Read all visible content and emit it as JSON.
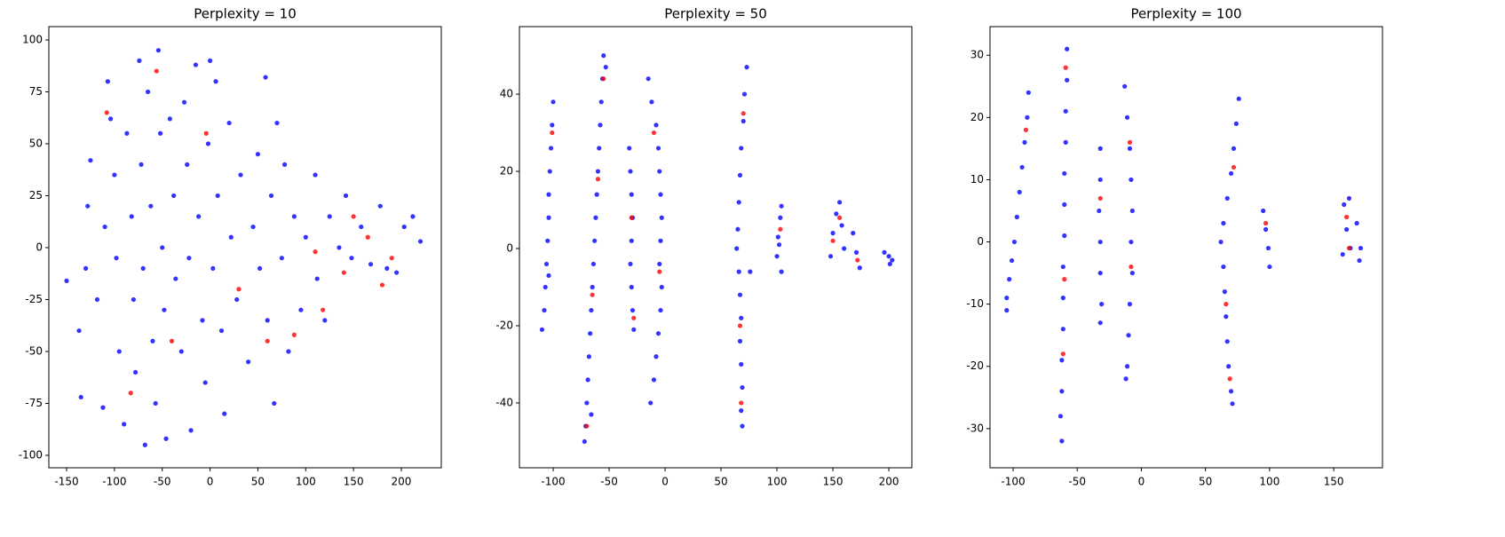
{
  "chart_data": [
    {
      "type": "scatter",
      "title": "Perplexity = 10",
      "xlim": [
        -168.6,
        241.8
      ],
      "ylim": [
        -106,
        106.4
      ],
      "xticks": [
        -150,
        -100,
        -50,
        0,
        50,
        100,
        150,
        200
      ],
      "yticks": [
        -100,
        -75,
        -50,
        -25,
        0,
        25,
        50,
        75,
        100
      ],
      "series": [
        {
          "color": "#0000ff",
          "x": [
            -150,
            -135,
            -137,
            -130,
            -128,
            -125,
            -118,
            -112,
            -110,
            -107,
            -104,
            -100,
            -98,
            -95,
            -90,
            -87,
            -82,
            -80,
            -78,
            -74,
            -72,
            -70,
            -68,
            -65,
            -62,
            -60,
            -57,
            -54,
            -52,
            -50,
            -48,
            -46,
            -42,
            -38,
            -36,
            -30,
            -27,
            -24,
            -22,
            -20,
            -15,
            -12,
            -8,
            -5,
            -2,
            0,
            3,
            6,
            8,
            12,
            15,
            20,
            22,
            28,
            32,
            40,
            45,
            50,
            52,
            58,
            60,
            64,
            67,
            70,
            75,
            78,
            82,
            88,
            95,
            100,
            110,
            112,
            120,
            125,
            135,
            142,
            148,
            158,
            168,
            178,
            185,
            195,
            203,
            212,
            220
          ],
          "y": [
            -16,
            -72,
            -40,
            -10,
            20,
            42,
            -25,
            -77,
            10,
            80,
            62,
            35,
            -5,
            -50,
            -85,
            55,
            15,
            -25,
            -60,
            90,
            40,
            -10,
            -95,
            75,
            20,
            -45,
            -75,
            95,
            55,
            0,
            -30,
            -92,
            62,
            25,
            -15,
            -50,
            70,
            40,
            -5,
            -88,
            88,
            15,
            -35,
            -65,
            50,
            90,
            -10,
            80,
            25,
            -40,
            -80,
            60,
            5,
            -25,
            35,
            -55,
            10,
            45,
            -10,
            82,
            -35,
            25,
            -75,
            60,
            -5,
            40,
            -50,
            15,
            -30,
            5,
            35,
            -15,
            -35,
            15,
            0,
            25,
            -5,
            10,
            -8,
            20,
            -10,
            -12,
            10,
            15,
            3
          ]
        },
        {
          "color": "#ff0000",
          "x": [
            -108,
            -83,
            -56,
            -40,
            -4,
            30,
            60,
            88,
            110,
            118,
            140,
            150,
            165,
            180,
            190
          ],
          "y": [
            65,
            -70,
            85,
            -45,
            55,
            -20,
            -45,
            -42,
            -2,
            -30,
            -12,
            15,
            5,
            -18,
            -5
          ]
        }
      ]
    },
    {
      "type": "scatter",
      "title": "Perplexity = 50",
      "xlim": [
        -130.2,
        220.6
      ],
      "ylim": [
        -56.8,
        57.5
      ],
      "xticks": [
        -100,
        -50,
        0,
        50,
        100,
        150,
        200
      ],
      "yticks": [
        -40,
        -20,
        0,
        20,
        40
      ],
      "series": [
        {
          "color": "#0000ff",
          "x": [
            -100,
            -101,
            -102,
            -103,
            -104,
            -104,
            -105,
            -106,
            -107,
            -108,
            -110,
            -104,
            -55,
            -56,
            -57,
            -58,
            -59,
            -60,
            -61,
            -62,
            -63,
            -64,
            -65,
            -66,
            -67,
            -68,
            -69,
            -70,
            -71,
            -72,
            -53,
            -66,
            -32,
            -31,
            -30,
            -29,
            -30,
            -31,
            -30,
            -29,
            -28,
            -15,
            -12,
            -8,
            -6,
            -5,
            -4,
            -3,
            -4,
            -5,
            -3,
            -4,
            -6,
            -8,
            -10,
            -13,
            73,
            71,
            70,
            68,
            67,
            66,
            65,
            64,
            66,
            67,
            68,
            67,
            68,
            69,
            68,
            69,
            76,
            100,
            101,
            103,
            104,
            104,
            102,
            148,
            150,
            153,
            156,
            158,
            160,
            168,
            171,
            174,
            196,
            200,
            203,
            201
          ],
          "y": [
            38,
            32,
            26,
            20,
            14,
            8,
            2,
            -4,
            -10,
            -16,
            -21,
            -7,
            50,
            44,
            38,
            32,
            26,
            20,
            14,
            8,
            2,
            -4,
            -10,
            -16,
            -22,
            -28,
            -34,
            -40,
            -46,
            -50,
            47,
            -43,
            26,
            20,
            14,
            8,
            2,
            -4,
            -10,
            -16,
            -21,
            44,
            38,
            32,
            26,
            20,
            14,
            8,
            2,
            -4,
            -10,
            -16,
            -22,
            -28,
            -34,
            -40,
            47,
            40,
            33,
            26,
            19,
            12,
            5,
            0,
            -6,
            -12,
            -18,
            -24,
            -30,
            -36,
            -42,
            -46,
            -6,
            -2,
            3,
            8,
            11,
            -6,
            1,
            -2,
            4,
            9,
            12,
            6,
            0,
            4,
            -1,
            -5,
            -1,
            -2,
            -3,
            -4
          ]
        },
        {
          "color": "#ff0000",
          "x": [
            -101,
            -55,
            -60,
            -65,
            -30,
            -28,
            -5,
            -10,
            70,
            67,
            68,
            103,
            150,
            156,
            172,
            -70
          ],
          "y": [
            30,
            44,
            18,
            -12,
            8,
            -18,
            -6,
            30,
            35,
            -20,
            -40,
            5,
            2,
            8,
            -3,
            -46
          ]
        }
      ]
    },
    {
      "type": "scatter",
      "title": "Perplexity = 100",
      "xlim": [
        -118,
        188
      ],
      "ylim": [
        -36.3,
        34.6
      ],
      "xticks": [
        -100,
        -50,
        0,
        50,
        100,
        150
      ],
      "yticks": [
        -30,
        -20,
        -10,
        0,
        10,
        20,
        30
      ],
      "series": [
        {
          "color": "#0000ff",
          "x": [
            -88,
            -89,
            -91,
            -93,
            -95,
            -97,
            -99,
            -101,
            -103,
            -105,
            -105,
            -58,
            -58,
            -59,
            -59,
            -60,
            -60,
            -60,
            -61,
            -61,
            -61,
            -62,
            -62,
            -63,
            -62,
            -32,
            -32,
            -33,
            -32,
            -32,
            -31,
            -32,
            -13,
            -11,
            -9,
            -8,
            -7,
            -8,
            -7,
            -9,
            -10,
            -11,
            -12,
            76,
            74,
            72,
            70,
            67,
            64,
            62,
            64,
            65,
            66,
            67,
            68,
            70,
            71,
            95,
            97,
            99,
            100,
            158,
            162,
            160,
            157,
            163,
            168,
            171,
            170
          ],
          "y": [
            24,
            20,
            16,
            12,
            8,
            4,
            0,
            -3,
            -6,
            -9,
            -11,
            31,
            26,
            21,
            16,
            11,
            6,
            1,
            -4,
            -9,
            -14,
            -19,
            -24,
            -28,
            -32,
            15,
            10,
            5,
            0,
            -5,
            -10,
            -13,
            25,
            20,
            15,
            10,
            5,
            0,
            -5,
            -10,
            -15,
            -20,
            -22,
            23,
            19,
            15,
            11,
            7,
            3,
            0,
            -4,
            -8,
            -12,
            -16,
            -20,
            -24,
            -26,
            5,
            2,
            -1,
            -4,
            6,
            7,
            2,
            -2,
            -1,
            3,
            -1,
            -3
          ]
        },
        {
          "color": "#ff0000",
          "x": [
            -90,
            -59,
            -60,
            -32,
            -9,
            -8,
            72,
            66,
            69,
            97,
            160,
            162,
            -61
          ],
          "y": [
            18,
            28,
            -6,
            7,
            16,
            -4,
            12,
            -10,
            -22,
            3,
            4,
            -1,
            -18
          ]
        }
      ]
    }
  ]
}
